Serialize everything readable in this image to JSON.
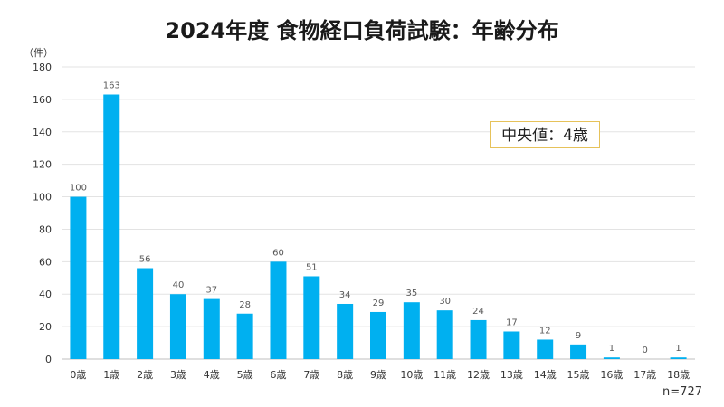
{
  "chart_data": {
    "type": "bar",
    "title": "2024年度 食物経口負荷試験：年齢分布",
    "ylabel": "（件）",
    "xlabel": "",
    "ylim": [
      0,
      180
    ],
    "yticks": [
      0,
      20,
      40,
      60,
      80,
      100,
      120,
      140,
      160,
      180
    ],
    "categories": [
      "0歳",
      "1歳",
      "2歳",
      "3歳",
      "4歳",
      "5歳",
      "6歳",
      "7歳",
      "8歳",
      "9歳",
      "10歳",
      "11歳",
      "12歳",
      "13歳",
      "14歳",
      "15歳",
      "16歳",
      "17歳",
      "18歳"
    ],
    "values": [
      100,
      163,
      56,
      40,
      37,
      28,
      60,
      51,
      34,
      29,
      35,
      30,
      24,
      17,
      12,
      9,
      1,
      0,
      1
    ],
    "grid": true,
    "bar_color": "#00b0f0",
    "annotation": "中央値：4歳",
    "note": "n=727"
  }
}
